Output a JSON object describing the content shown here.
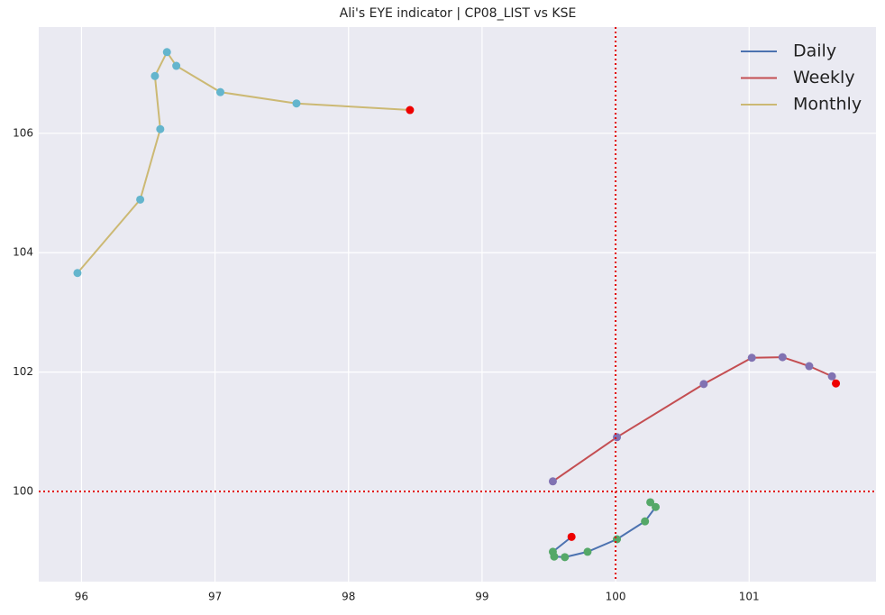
{
  "chart_data": {
    "type": "line",
    "title": "Ali's EYE indicator | CP08_LIST vs KSE",
    "xlim": [
      95.68,
      101.95
    ],
    "ylim": [
      98.49,
      107.78
    ],
    "xticks": [
      96,
      97,
      98,
      99,
      100,
      101
    ],
    "yticks": [
      100,
      102,
      104,
      106
    ],
    "grid": true,
    "legend": "upper right",
    "hline": 100,
    "vline": 100,
    "reference_color": "#e00000",
    "series": [
      {
        "name": "Daily",
        "color": "#4c72b0",
        "marker_color": "#55a868",
        "last_color": "#ee0000",
        "x": [
          100.26,
          100.3,
          100.22,
          100.01,
          99.79,
          99.62,
          99.54,
          99.53,
          99.67
        ],
        "values": [
          99.82,
          99.74,
          99.5,
          99.2,
          98.99,
          98.9,
          98.91,
          98.99,
          99.24
        ]
      },
      {
        "name": "Weekly",
        "color": "#c44e52",
        "marker_color": "#8172b2",
        "last_color": "#ee0000",
        "x": [
          99.53,
          100.01,
          100.66,
          101.02,
          101.25,
          101.45,
          101.62,
          101.65
        ],
        "values": [
          100.17,
          100.91,
          101.8,
          102.24,
          102.25,
          102.1,
          101.93,
          101.81
        ]
      },
      {
        "name": "Monthly",
        "color": "#ccb974",
        "marker_color": "#64b5cd",
        "last_color": "#ee0000",
        "x": [
          95.97,
          96.44,
          96.59,
          96.55,
          96.64,
          96.71,
          97.04,
          97.61,
          98.46
        ],
        "values": [
          103.66,
          104.89,
          106.07,
          106.96,
          107.36,
          107.13,
          106.69,
          106.5,
          106.39
        ]
      }
    ]
  }
}
